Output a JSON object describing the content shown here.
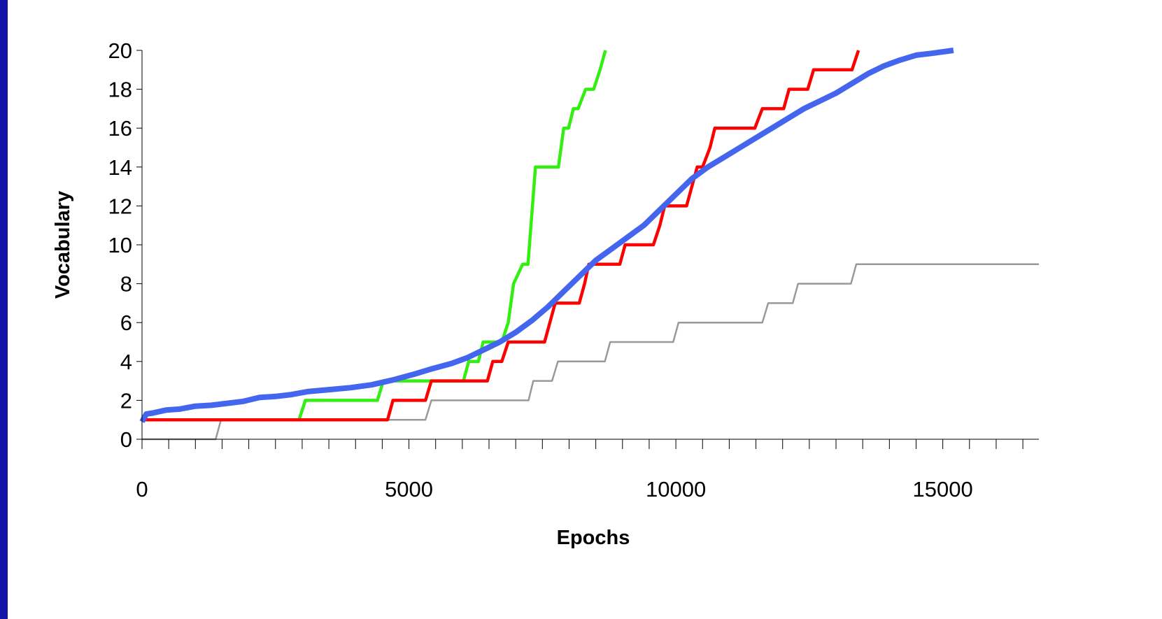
{
  "colors": {
    "frame": "#1414a8",
    "background": "#ffffff",
    "gray": "#999999",
    "green": "#33ee11",
    "red": "#ff0000",
    "blue": "#4466ee"
  },
  "chart_data": {
    "type": "line",
    "title": "",
    "xlabel": "Epochs",
    "ylabel": "Vocabulary",
    "xlim": [
      0,
      16800
    ],
    "ylim": [
      0,
      20
    ],
    "x_ticks": [
      0,
      5000,
      10000,
      15000
    ],
    "y_ticks": [
      0,
      2,
      4,
      6,
      8,
      10,
      12,
      14,
      16,
      18,
      20
    ],
    "x_minor_tick_step": 500,
    "grid": false,
    "legend": "none",
    "series": [
      {
        "color": "#999999",
        "stroke": "thin",
        "points": [
          [
            0,
            0
          ],
          [
            1380,
            0
          ],
          [
            1480,
            1
          ],
          [
            5310,
            1
          ],
          [
            5420,
            2
          ],
          [
            7240,
            2
          ],
          [
            7330,
            3
          ],
          [
            7680,
            3
          ],
          [
            7790,
            4
          ],
          [
            8670,
            4
          ],
          [
            8770,
            5
          ],
          [
            9950,
            5
          ],
          [
            10050,
            6
          ],
          [
            11620,
            6
          ],
          [
            11730,
            7
          ],
          [
            12190,
            7
          ],
          [
            12290,
            8
          ],
          [
            13280,
            8
          ],
          [
            13380,
            9
          ],
          [
            16800,
            9
          ]
        ]
      },
      {
        "color": "#33ee11",
        "stroke": "medium",
        "points": [
          [
            0,
            1
          ],
          [
            2940,
            1
          ],
          [
            3060,
            2
          ],
          [
            4410,
            2
          ],
          [
            4520,
            3
          ],
          [
            6020,
            3
          ],
          [
            6120,
            4
          ],
          [
            6300,
            4
          ],
          [
            6390,
            5
          ],
          [
            6740,
            5
          ],
          [
            6860,
            6
          ],
          [
            6960,
            8
          ],
          [
            7130,
            9
          ],
          [
            7230,
            9
          ],
          [
            7370,
            14
          ],
          [
            7800,
            14
          ],
          [
            7900,
            16
          ],
          [
            7990,
            16
          ],
          [
            8080,
            17
          ],
          [
            8170,
            17
          ],
          [
            8310,
            18
          ],
          [
            8460,
            18
          ],
          [
            8580,
            19
          ],
          [
            8680,
            20
          ]
        ]
      },
      {
        "color": "#ff0000",
        "stroke": "medium",
        "points": [
          [
            0,
            1
          ],
          [
            4600,
            1
          ],
          [
            4700,
            2
          ],
          [
            5310,
            2
          ],
          [
            5420,
            3
          ],
          [
            6470,
            3
          ],
          [
            6570,
            4
          ],
          [
            6740,
            4
          ],
          [
            6860,
            5
          ],
          [
            7540,
            5
          ],
          [
            7640,
            6
          ],
          [
            7740,
            7
          ],
          [
            8190,
            7
          ],
          [
            8290,
            8
          ],
          [
            8370,
            9
          ],
          [
            8950,
            9
          ],
          [
            9050,
            10
          ],
          [
            9580,
            10
          ],
          [
            9700,
            11
          ],
          [
            9790,
            12
          ],
          [
            10200,
            12
          ],
          [
            10400,
            14
          ],
          [
            10500,
            14
          ],
          [
            10640,
            15
          ],
          [
            10730,
            16
          ],
          [
            11480,
            16
          ],
          [
            11620,
            17
          ],
          [
            12020,
            17
          ],
          [
            12120,
            18
          ],
          [
            12470,
            18
          ],
          [
            12580,
            19
          ],
          [
            13300,
            19
          ],
          [
            13420,
            20
          ]
        ]
      },
      {
        "color": "#4466ee",
        "stroke": "thick",
        "points": [
          [
            0,
            0.9
          ],
          [
            80,
            1.3
          ],
          [
            200,
            1.35
          ],
          [
            450,
            1.5
          ],
          [
            700,
            1.55
          ],
          [
            1000,
            1.7
          ],
          [
            1300,
            1.75
          ],
          [
            1600,
            1.85
          ],
          [
            1900,
            1.95
          ],
          [
            2200,
            2.15
          ],
          [
            2500,
            2.2
          ],
          [
            2800,
            2.3
          ],
          [
            3100,
            2.45
          ],
          [
            3500,
            2.55
          ],
          [
            3900,
            2.65
          ],
          [
            4300,
            2.8
          ],
          [
            4700,
            3.05
          ],
          [
            5100,
            3.35
          ],
          [
            5400,
            3.6
          ],
          [
            5800,
            3.9
          ],
          [
            6100,
            4.2
          ],
          [
            6400,
            4.6
          ],
          [
            6700,
            5.0
          ],
          [
            7000,
            5.5
          ],
          [
            7300,
            6.1
          ],
          [
            7600,
            6.8
          ],
          [
            7900,
            7.6
          ],
          [
            8200,
            8.4
          ],
          [
            8500,
            9.2
          ],
          [
            8800,
            9.8
          ],
          [
            9100,
            10.4
          ],
          [
            9400,
            11.0
          ],
          [
            9700,
            11.8
          ],
          [
            10000,
            12.6
          ],
          [
            10300,
            13.4
          ],
          [
            10600,
            14.0
          ],
          [
            10900,
            14.5
          ],
          [
            11200,
            15.0
          ],
          [
            11500,
            15.5
          ],
          [
            11800,
            16.0
          ],
          [
            12100,
            16.5
          ],
          [
            12400,
            17.0
          ],
          [
            12700,
            17.4
          ],
          [
            13000,
            17.8
          ],
          [
            13300,
            18.3
          ],
          [
            13600,
            18.8
          ],
          [
            13900,
            19.2
          ],
          [
            14200,
            19.5
          ],
          [
            14500,
            19.75
          ],
          [
            14800,
            19.85
          ],
          [
            15200,
            20
          ]
        ]
      }
    ]
  }
}
